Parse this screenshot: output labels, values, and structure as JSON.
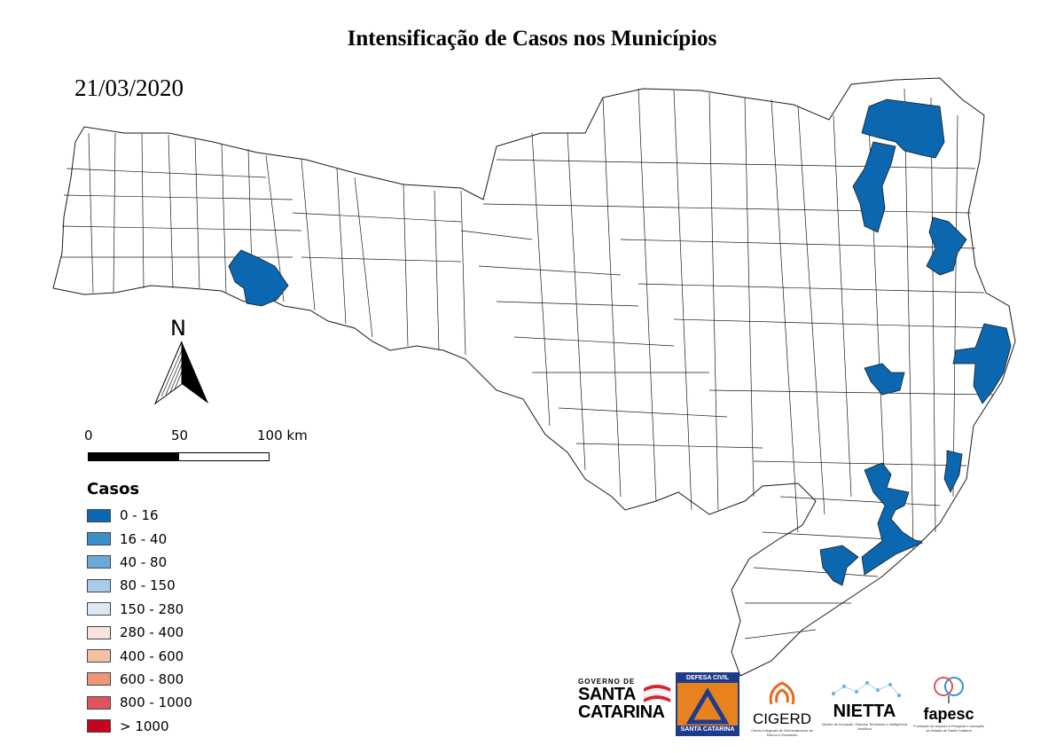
{
  "title": "Intensificação de Casos nos Municípios",
  "date": "21/03/2020",
  "north_label": "N",
  "scale": {
    "labels": [
      "0",
      "50",
      "100 km"
    ]
  },
  "legend": {
    "title": "Casos",
    "items": [
      {
        "label": "0 - 16",
        "color": "#0b68b0"
      },
      {
        "label": "16 - 40",
        "color": "#3a8fca"
      },
      {
        "label": "40 - 80",
        "color": "#6aa9d9"
      },
      {
        "label": "80 - 150",
        "color": "#a8cbe9"
      },
      {
        "label": "150 - 280",
        "color": "#dde8f2"
      },
      {
        "label": "280 - 400",
        "color": "#f8e4da"
      },
      {
        "label": "400 - 600",
        "color": "#f5c0a3"
      },
      {
        "label": "600 - 800",
        "color": "#ef9475"
      },
      {
        "label": "800 - 1000",
        "color": "#e0535a"
      },
      {
        "label": "> 1000",
        "color": "#c4041f"
      }
    ]
  },
  "map_colors": {
    "fill_default": "#ffffff",
    "fill_cases": "#0b68b0",
    "border": "#1a1a1a"
  },
  "logos": {
    "gov_top": "GOVERNO DE",
    "gov_line1": "SANTA",
    "gov_line2": "CATARINA",
    "dc_top": "DEFESA CIVIL",
    "dc_bottom": "SANTA CATARINA",
    "cigerd": "CIGERD",
    "cigerd_sub": "Centro Integrado de Gerenciamento de Riscos e Desastres",
    "nietta": "NIETTA",
    "nietta_sub": "Núcleo de Inovação, Estudos Territoriais e Inteligência Analítica",
    "fapesc": "fapesc",
    "fapesc_sub": "Fundação de Amparo à Pesquisa e Inovação do Estado de Santa Catarina"
  }
}
